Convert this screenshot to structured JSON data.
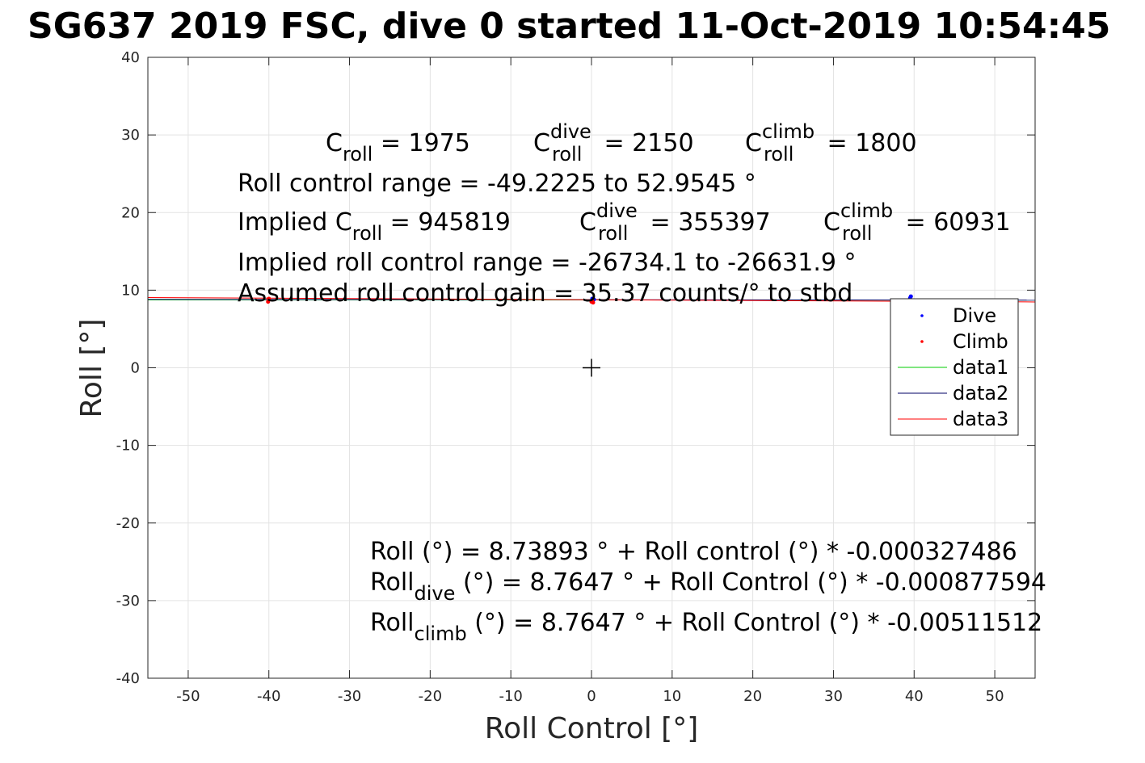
{
  "chart_data": {
    "type": "scatter",
    "title": "SG637 2019 FSC, dive 0 started 11-Oct-2019 10:54:45",
    "xlabel": "Roll Control [°]",
    "ylabel": "Roll [°]",
    "xlim": [
      -55,
      55
    ],
    "ylim": [
      -40,
      40
    ],
    "xticks": [
      -50,
      -40,
      -30,
      -20,
      -10,
      0,
      10,
      20,
      30,
      40,
      50
    ],
    "yticks": [
      -40,
      -30,
      -20,
      -10,
      0,
      10,
      20,
      30,
      40
    ],
    "grid": true,
    "legend_position": "right",
    "series": [
      {
        "name": "Dive",
        "kind": "points",
        "color": "#0000ff",
        "x": [
          0.1,
          0.2,
          0.3,
          0.0,
          39.5,
          39.6
        ],
        "y": [
          8.9,
          8.7,
          8.8,
          8.6,
          9.0,
          9.2
        ]
      },
      {
        "name": "Climb",
        "kind": "points",
        "color": "#ff0000",
        "x": [
          -40.0,
          -40.1,
          0.1,
          0.2,
          0.0
        ],
        "y": [
          8.9,
          8.5,
          8.6,
          8.4,
          8.5
        ]
      },
      {
        "name": "data1",
        "kind": "line",
        "color": "#00cc00",
        "x": [
          -55,
          55
        ],
        "y": [
          8.757,
          8.721
        ]
      },
      {
        "name": "data2",
        "kind": "line",
        "color": "#000066",
        "x": [
          -55,
          55
        ],
        "y": [
          8.813,
          8.716
        ]
      },
      {
        "name": "data3",
        "kind": "line",
        "color": "#ff0000",
        "x": [
          -55,
          55
        ],
        "y": [
          9.046,
          8.483
        ]
      }
    ],
    "marker": {
      "x": 0,
      "y": 0,
      "symbol": "+"
    }
  },
  "annotations": {
    "c_roll": {
      "base": "C",
      "sub": "roll",
      "value": " = 1975"
    },
    "c_roll_dive": {
      "base": "C",
      "sup": "dive",
      "sub": "roll",
      "value": " = 2150"
    },
    "c_roll_climb": {
      "base": "C",
      "sup": "climb",
      "sub": "roll",
      "value": " = 1800"
    },
    "roll_control_range": "Roll control range = -49.2225 to 52.9545 °",
    "implied_c_roll": {
      "prefix": "Implied C",
      "sub": "roll",
      "value": " = 945819"
    },
    "implied_c_roll_dive": {
      "base": "C",
      "sup": "dive",
      "sub": "roll",
      "value": " = 355397"
    },
    "implied_c_roll_climb": {
      "base": "C",
      "sup": "climb",
      "sub": "roll",
      "value": " = 60931"
    },
    "implied_roll_control_range": "Implied roll control range = -26734.1 to -26631.9 °",
    "assumed_gain": "Assumed roll control gain = 35.37 counts/° to stbd",
    "fit_all": "Roll (°) = 8.73893 ° + Roll control (°) * -0.000327486",
    "fit_dive": {
      "base": "Roll",
      "sub": "dive",
      "rest": " (°) = 8.7647 ° + Roll Control (°) * -0.000877594"
    },
    "fit_climb": {
      "base": "Roll",
      "sub": "climb",
      "rest": " (°) = 8.7647 ° + Roll Control (°) * -0.00511512"
    }
  }
}
